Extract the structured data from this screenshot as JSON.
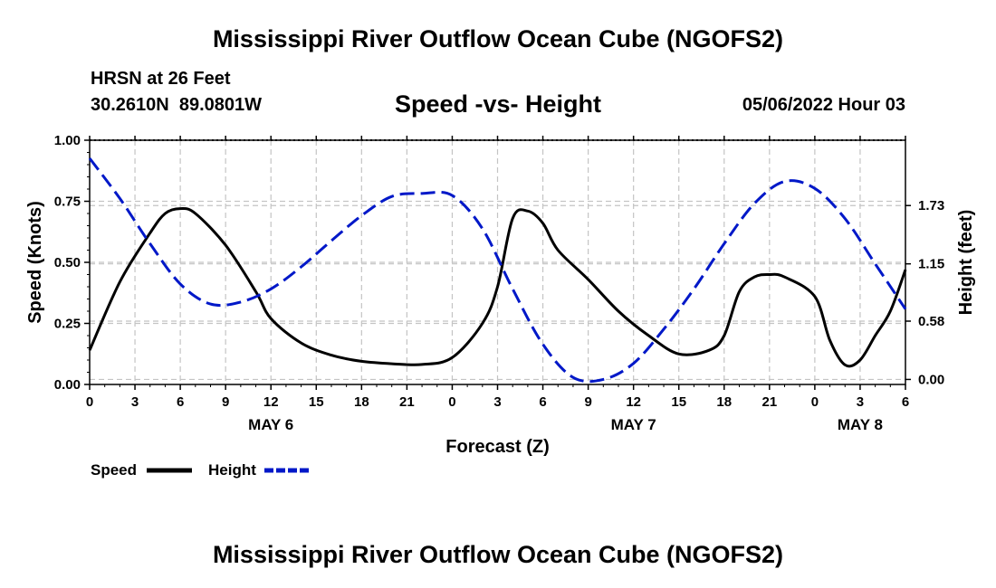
{
  "page": {
    "title": "Mississippi River Outflow Ocean Cube (NGOFS2)",
    "footer_title": "Mississippi River Outflow Ocean Cube (NGOFS2)"
  },
  "header": {
    "station": "HRSN at 26 Feet",
    "coords": "30.2610N  89.0801W",
    "date": "05/06/2022 Hour 03"
  },
  "chart_data": {
    "type": "line",
    "title": "Speed -vs- Height",
    "xlabel": "Forecast (Z)",
    "ylabel": "Speed (Knots)",
    "y2label": "Height (feet)",
    "xlim": [
      0,
      54
    ],
    "ylim": [
      0,
      1
    ],
    "y2lim": [
      -0.05,
      2.38
    ],
    "x_ticks": [
      0,
      3,
      6,
      9,
      12,
      15,
      18,
      21,
      24,
      27,
      30,
      33,
      36,
      39,
      42,
      45,
      48,
      51,
      54
    ],
    "x_tick_labels": [
      "0",
      "3",
      "6",
      "9",
      "12",
      "15",
      "18",
      "21",
      "0",
      "3",
      "6",
      "9",
      "12",
      "15",
      "18",
      "21",
      "0",
      "3",
      "6"
    ],
    "day_labels": [
      {
        "x": 12,
        "label": "MAY 6"
      },
      {
        "x": 36,
        "label": "MAY 7"
      },
      {
        "x": 51,
        "label": "MAY 8"
      }
    ],
    "y_ticks": [
      0,
      0.25,
      0.5,
      0.75,
      1.0
    ],
    "y_tick_labels": [
      "0.00",
      "0.25",
      "0.50",
      "0.75",
      "1.00"
    ],
    "y2_ticks": [
      0.0,
      0.58,
      1.15,
      1.73
    ],
    "y2_tick_labels": [
      "0.00",
      "0.58",
      "1.15",
      "1.73"
    ],
    "grid": true,
    "series": [
      {
        "name": "Speed",
        "axis": "left",
        "color": "#000000",
        "style": "solid",
        "x": [
          0,
          2,
          4,
          5,
          6,
          7,
          9,
          11,
          12,
          14,
          16,
          18,
          20,
          22,
          24,
          26,
          27,
          28,
          29,
          30,
          31,
          33,
          35,
          37,
          39,
          41,
          42,
          43,
          44,
          45,
          46,
          48,
          49,
          50,
          51,
          52,
          53,
          54
        ],
        "y": [
          0.14,
          0.42,
          0.62,
          0.7,
          0.72,
          0.7,
          0.57,
          0.38,
          0.27,
          0.17,
          0.12,
          0.095,
          0.085,
          0.082,
          0.11,
          0.25,
          0.4,
          0.68,
          0.71,
          0.66,
          0.55,
          0.43,
          0.3,
          0.2,
          0.125,
          0.14,
          0.2,
          0.38,
          0.44,
          0.45,
          0.44,
          0.36,
          0.18,
          0.08,
          0.1,
          0.2,
          0.3,
          0.47
        ]
      },
      {
        "name": "Height",
        "axis": "right",
        "color": "#0018c8",
        "style": "dashed",
        "x": [
          0,
          2,
          4,
          6,
          8,
          10,
          12,
          14,
          16,
          18,
          20,
          22,
          24,
          26,
          28,
          30,
          32,
          34,
          36,
          38,
          40,
          42,
          44,
          46,
          48,
          50,
          52,
          54
        ],
        "y": [
          2.2,
          1.8,
          1.35,
          0.95,
          0.75,
          0.77,
          0.9,
          1.12,
          1.38,
          1.63,
          1.82,
          1.85,
          1.83,
          1.5,
          0.9,
          0.35,
          0.02,
          0.0,
          0.16,
          0.5,
          0.9,
          1.35,
          1.75,
          1.97,
          1.9,
          1.6,
          1.15,
          0.7
        ]
      }
    ],
    "legend": {
      "position": "bottom-left",
      "entries": [
        {
          "label": "Speed",
          "color": "#000000",
          "style": "solid"
        },
        {
          "label": "Height",
          "color": "#0018c8",
          "style": "dashed"
        }
      ]
    }
  }
}
